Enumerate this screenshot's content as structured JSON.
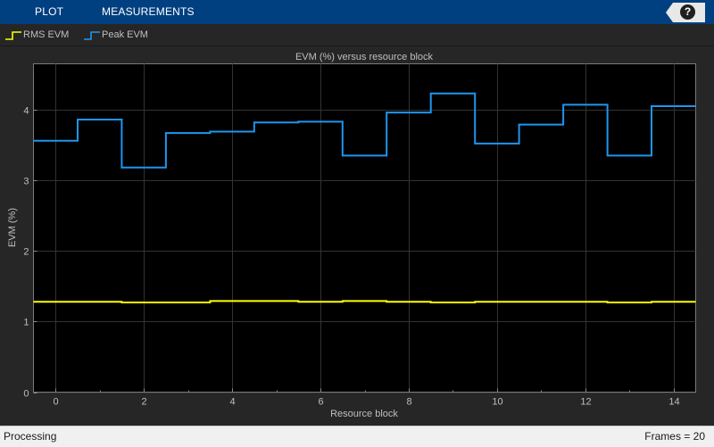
{
  "toolbar": {
    "tabs": [
      {
        "label": "PLOT"
      },
      {
        "label": "MEASUREMENTS"
      }
    ],
    "help_icon": "question-mark-icon"
  },
  "colors": {
    "rms": "#ffff00",
    "peak": "#1e96f0",
    "toolbar": "#004080",
    "plot_bg": "#000000",
    "frame_bg": "#262626"
  },
  "chart_data": {
    "type": "line",
    "step": true,
    "title": "EVM (%) versus resource block",
    "xlabel": "Resource block",
    "ylabel": "EVM (%)",
    "xlim": [
      -0.5,
      14.5
    ],
    "ylim": [
      0,
      4.65
    ],
    "xticks": [
      0,
      2,
      4,
      6,
      8,
      10,
      12,
      14
    ],
    "yticks": [
      0,
      1,
      2,
      3,
      4
    ],
    "grid": true,
    "legend": "top-left",
    "x": [
      0,
      1,
      2,
      3,
      4,
      5,
      6,
      7,
      8,
      9,
      10,
      11,
      12,
      13,
      14
    ],
    "series": [
      {
        "name": "RMS EVM",
        "color": "#ffff00",
        "values": [
          1.28,
          1.28,
          1.27,
          1.27,
          1.29,
          1.29,
          1.28,
          1.29,
          1.28,
          1.27,
          1.28,
          1.28,
          1.28,
          1.27,
          1.28
        ]
      },
      {
        "name": "Peak EVM",
        "color": "#1e96f0",
        "values": [
          3.56,
          3.86,
          3.18,
          3.67,
          3.69,
          3.82,
          3.83,
          3.35,
          3.96,
          4.23,
          3.52,
          3.79,
          4.07,
          3.35,
          4.05
        ]
      }
    ]
  },
  "status": {
    "left": "Processing",
    "right": "Frames = 20"
  }
}
